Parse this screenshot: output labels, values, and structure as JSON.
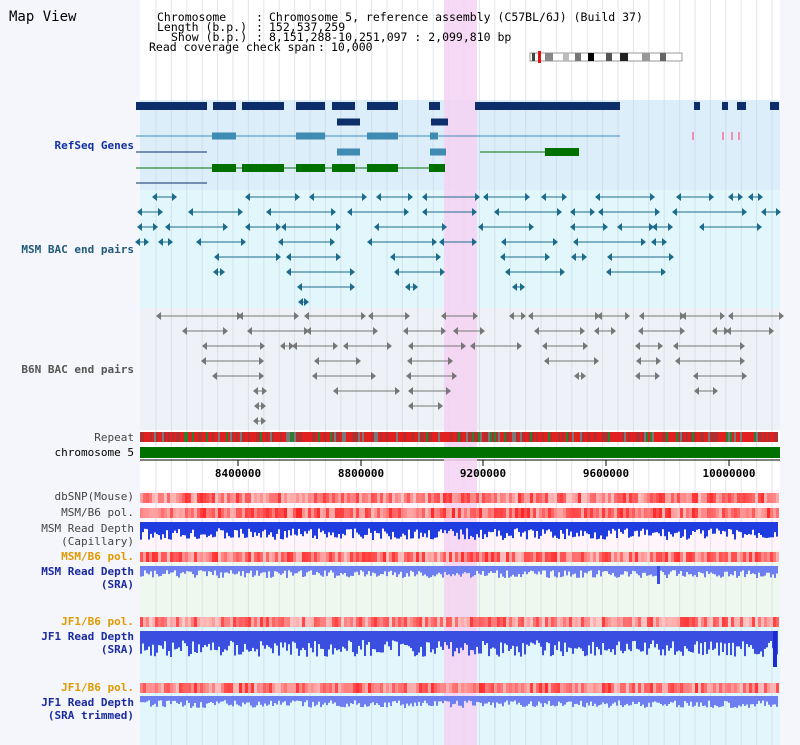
{
  "view_title": "Map View",
  "header": {
    "chromosome_label": "Chromosome",
    "chromosome_value": "Chromosome 5, reference assembly (C57BL/6J) (Build 37)",
    "length_label": "Length (b.p.)",
    "length_value": "152,537,259",
    "show_label": "Show (b.p.)",
    "show_value": "8,151,288-10,251,097 : 2,099,810 bp",
    "coverage_label": "Read coverage check span",
    "coverage_value": "10,000"
  },
  "tracks": {
    "refseq": "RefSeq Genes",
    "msm_bac": "MSM BAC end pairs",
    "b6n_bac": "B6N BAC end pairs",
    "repeat": "Repeat",
    "chromosome": "chromosome 5",
    "dbsnp": "dbSNP(Mouse)",
    "msm_b6_pol": "MSM/B6 pol.",
    "msm_read_depth_cap_1": "MSM Read Depth",
    "msm_read_depth_cap_2": "(Capillary)",
    "msm_b6_pol_sra": "MSM/B6 pol.",
    "msm_read_depth_sra_1": "MSM Read Depth",
    "msm_read_depth_sra_2": "(SRA)",
    "jf1_b6_pol": "JF1/B6 pol.",
    "jf1_read_depth_1": "JF1 Read Depth",
    "jf1_read_depth_2": "(SRA)",
    "jf1_b6_pol_trim": "JF1/B6 pol.",
    "jf1_read_depth_trim_1": "JF1 Read Depth",
    "jf1_read_depth_trim_2": "(SRA trimmed)"
  },
  "axis_ticks": [
    "8400000",
    "8800000",
    "9200000",
    "9600000",
    "10000000"
  ],
  "colors": {
    "refseq_bg": "#dbeef9",
    "bac_bg": "#e2f7fb",
    "b6n_bg": "#eef2f6",
    "highlight": "#f4d2f2",
    "chromosome": "#007000",
    "gene_dark": "#0d2d6b",
    "gene_mid": "#3f8bb3",
    "gene_green": "#007000",
    "msm_bac": "#1c6b8b",
    "b6n_bac": "#777777"
  }
}
